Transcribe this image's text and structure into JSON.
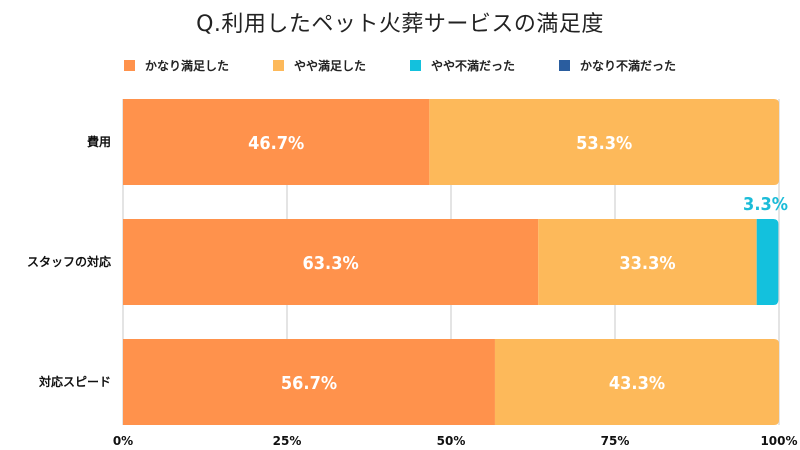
{
  "chart_data": {
    "type": "bar",
    "orientation": "horizontal",
    "stacked": true,
    "title": "Q.利用したペット火葬サービスの満足度",
    "categories": [
      "費用",
      "スタッフの対応",
      "対応スピード"
    ],
    "series": [
      {
        "name": "かなり満足した",
        "color": "#ff924c",
        "values": [
          46.7,
          63.3,
          56.7
        ]
      },
      {
        "name": "やや満足した",
        "color": "#fdb95a",
        "values": [
          53.3,
          33.3,
          43.3
        ]
      },
      {
        "name": "やや不満だった",
        "color": "#13c1dd",
        "values": [
          0,
          3.3,
          0
        ]
      },
      {
        "name": "かなり不満だった",
        "color": "#2a5d9f",
        "values": [
          0,
          0,
          0
        ]
      }
    ],
    "data_labels": [
      [
        "46.7%",
        "53.3%",
        "",
        ""
      ],
      [
        "63.3%",
        "33.3%",
        "3.3%",
        ""
      ],
      [
        "56.7%",
        "43.3%",
        "",
        ""
      ]
    ],
    "xticks": [
      "0%",
      "25%",
      "50%",
      "75%",
      "100%"
    ],
    "xlim": [
      0,
      100
    ],
    "grid": true,
    "legend_position": "top"
  }
}
